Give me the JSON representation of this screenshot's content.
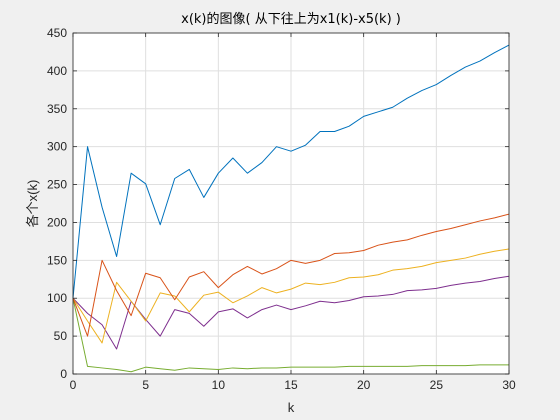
{
  "chart_data": {
    "type": "line",
    "title": "x(k)的图像( 从下往上为x1(k)-x5(k) )",
    "xlabel": "k",
    "ylabel": "各个x(k)",
    "xlim": [
      0,
      30
    ],
    "ylim": [
      0,
      450
    ],
    "xticks": [
      0,
      5,
      10,
      15,
      20,
      25,
      30
    ],
    "yticks": [
      0,
      50,
      100,
      150,
      200,
      250,
      300,
      350,
      400,
      450
    ],
    "grid": true,
    "legend": "none",
    "x": [
      0,
      1,
      2,
      3,
      4,
      5,
      6,
      7,
      8,
      9,
      10,
      11,
      12,
      13,
      14,
      15,
      16,
      17,
      18,
      19,
      20,
      21,
      22,
      23,
      24,
      25,
      26,
      27,
      28,
      29,
      30
    ],
    "series": [
      {
        "color": "#77ac30",
        "values": [
          100,
          10,
          8,
          6,
          3,
          9,
          7,
          5,
          8,
          7,
          6,
          8,
          7,
          8,
          8,
          9,
          9,
          9,
          9,
          10,
          10,
          10,
          10,
          10,
          11,
          11,
          11,
          11,
          12,
          12,
          12
        ]
      },
      {
        "color": "#7e2f8e",
        "values": [
          100,
          80,
          65,
          33,
          96,
          72,
          50,
          85,
          80,
          63,
          82,
          86,
          74,
          85,
          91,
          85,
          90,
          96,
          94,
          97,
          102,
          103,
          105,
          110,
          111,
          113,
          117,
          120,
          122,
          126,
          129
        ]
      },
      {
        "color": "#edb120",
        "values": [
          100,
          70,
          41,
          121,
          96,
          70,
          107,
          103,
          82,
          104,
          108,
          94,
          103,
          114,
          107,
          112,
          120,
          118,
          121,
          127,
          128,
          131,
          137,
          139,
          142,
          147,
          150,
          153,
          158,
          162,
          165
        ]
      },
      {
        "color": "#d95319",
        "values": [
          100,
          50,
          150,
          110,
          77,
          133,
          127,
          98,
          128,
          135,
          114,
          131,
          142,
          132,
          139,
          150,
          146,
          150,
          159,
          160,
          163,
          170,
          174,
          177,
          183,
          188,
          192,
          197,
          202,
          206,
          211
        ]
      },
      {
        "color": "#0072bd",
        "values": [
          100,
          300,
          220,
          155,
          265,
          251,
          197,
          258,
          270,
          233,
          265,
          285,
          265,
          279,
          300,
          294,
          302,
          320,
          320,
          327,
          340,
          346,
          352,
          364,
          374,
          382,
          394,
          405,
          413,
          424,
          434
        ]
      }
    ]
  }
}
